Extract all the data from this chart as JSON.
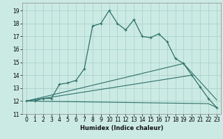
{
  "title": "",
  "xlabel": "Humidex (Indice chaleur)",
  "background_color": "#cceae4",
  "grid_color": "#aad4cc",
  "line_color": "#2d7068",
  "xlim": [
    -0.5,
    23.5
  ],
  "ylim": [
    11.0,
    19.6
  ],
  "yticks": [
    11,
    12,
    13,
    14,
    15,
    16,
    17,
    18,
    19
  ],
  "xticks": [
    0,
    1,
    2,
    3,
    4,
    5,
    6,
    7,
    8,
    9,
    10,
    11,
    12,
    13,
    14,
    15,
    16,
    17,
    18,
    19,
    20,
    21,
    22,
    23
  ],
  "line1_x": [
    0,
    1,
    2,
    3,
    4,
    5,
    6,
    7,
    8,
    9,
    10,
    11,
    12,
    13,
    14,
    15,
    16,
    17,
    18,
    19,
    20,
    21,
    22,
    23
  ],
  "line1_y": [
    12.0,
    12.0,
    12.2,
    12.2,
    13.3,
    13.4,
    13.6,
    14.5,
    17.8,
    18.0,
    19.0,
    18.0,
    17.5,
    18.3,
    17.0,
    16.9,
    17.2,
    16.6,
    15.3,
    14.9,
    14.0,
    13.1,
    12.2,
    11.5
  ],
  "line2_x": [
    0,
    19,
    23
  ],
  "line2_y": [
    12.0,
    14.9,
    12.1
  ],
  "line3_x": [
    0,
    20
  ],
  "line3_y": [
    12.0,
    14.0
  ],
  "line4_x": [
    0,
    22,
    23
  ],
  "line4_y": [
    12.0,
    11.8,
    11.5
  ]
}
